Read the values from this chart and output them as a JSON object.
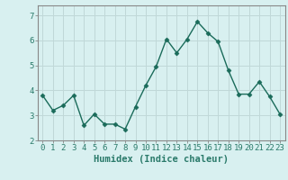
{
  "x": [
    0,
    1,
    2,
    3,
    4,
    5,
    6,
    7,
    8,
    9,
    10,
    11,
    12,
    13,
    14,
    15,
    16,
    17,
    18,
    19,
    20,
    21,
    22,
    23
  ],
  "y": [
    3.8,
    3.2,
    3.4,
    3.8,
    2.6,
    3.05,
    2.65,
    2.65,
    2.45,
    3.35,
    4.2,
    4.95,
    6.05,
    5.5,
    6.05,
    6.75,
    6.3,
    5.95,
    4.8,
    3.85,
    3.85,
    4.35,
    3.75,
    3.05
  ],
  "line_color": "#1a6b5a",
  "marker": "D",
  "marker_size": 2.5,
  "bg_color": "#d8f0f0",
  "grid_color": "#c0d8d8",
  "xlabel": "Humidex (Indice chaleur)",
  "ylim": [
    2.0,
    7.4
  ],
  "yticks": [
    2,
    3,
    4,
    5,
    6,
    7
  ],
  "xticks": [
    0,
    1,
    2,
    3,
    4,
    5,
    6,
    7,
    8,
    9,
    10,
    11,
    12,
    13,
    14,
    15,
    16,
    17,
    18,
    19,
    20,
    21,
    22,
    23
  ],
  "tick_color": "#2a7a6a",
  "xlabel_fontsize": 7.5,
  "tick_fontsize": 6.5,
  "spine_color": "#888888",
  "grid_lw": 0.7,
  "line_lw": 1.0
}
